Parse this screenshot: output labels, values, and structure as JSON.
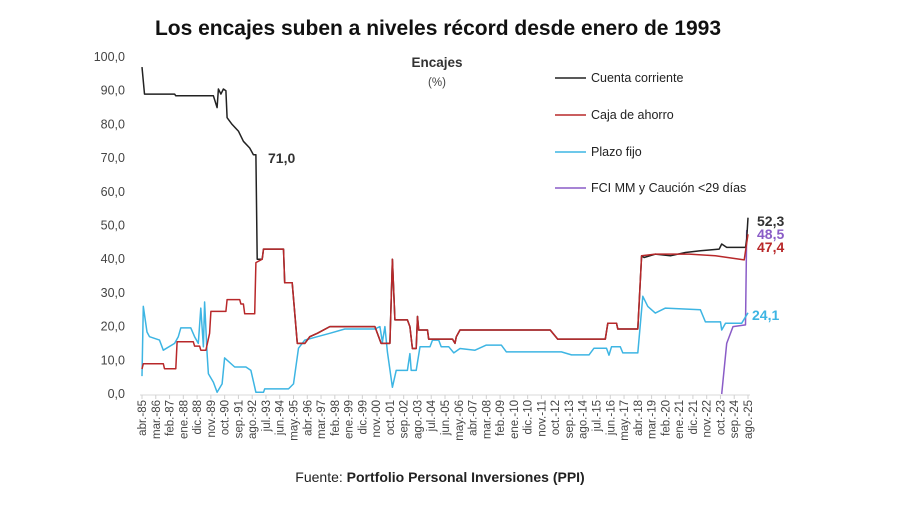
{
  "chart_data": {
    "type": "line",
    "title": "Los encajes suben a niveles récord desde enero de 1993",
    "chart_title": "Encajes",
    "unit": "(%)",
    "source_prefix": "Fuente: ",
    "source": "Portfolio Personal Inversiones (PPI)",
    "ylim": [
      0,
      100
    ],
    "y_ticks": [
      "0,0",
      "10,0",
      "20,0",
      "30,0",
      "40,0",
      "50,0",
      "60,0",
      "70,0",
      "80,0",
      "90,0",
      "100,0"
    ],
    "x_ticks": [
      "abr.-85",
      "mar.-86",
      "feb.-87",
      "ene.-88",
      "dic.-88",
      "nov.-89",
      "oct.-90",
      "sep.-91",
      "ago.-92",
      "jul.-93",
      "jun.-94",
      "may.-95",
      "abr.-96",
      "mar.-97",
      "feb.-98",
      "ene.-99",
      "dic.-99",
      "nov.-00",
      "oct.-01",
      "sep.-02",
      "ago.-03",
      "jul.-04",
      "jun.-05",
      "may.-06",
      "abr.-07",
      "mar.-08",
      "feb.-09",
      "ene.-10",
      "dic.-10",
      "nov.-11",
      "oct.-12",
      "sep.-13",
      "ago.-14",
      "jul.-15",
      "jun.-16",
      "may.-17",
      "abr.-18",
      "mar.-19",
      "feb.-20",
      "ene.-21",
      "dic.-21",
      "nov.-22",
      "oct.-23",
      "sep.-24",
      "ago.-25"
    ],
    "xlim": [
      "1985-04",
      "2025-08"
    ],
    "grid": false,
    "legend_position": "top-right",
    "annotations": [
      {
        "text": "71,0",
        "series": "Cuenta corriente",
        "date": "1992-09"
      },
      {
        "text": "52,3",
        "series": "Cuenta corriente",
        "date": "2025-08"
      },
      {
        "text": "48,5",
        "series": "FCI MM y Caución <29 días",
        "date": "2025-08"
      },
      {
        "text": "47,4",
        "series": "Caja de ahorro",
        "date": "2025-08"
      },
      {
        "text": "24,1",
        "series": "Plazo fijo",
        "date": "2025-08"
      }
    ],
    "series": [
      {
        "name": "Cuenta corriente",
        "color": "#222222",
        "points": [
          [
            "1985-04",
            97
          ],
          [
            "1985-06",
            89
          ],
          [
            "1987-06",
            89
          ],
          [
            "1987-07",
            88.5
          ],
          [
            "1990-01",
            88.5
          ],
          [
            "1990-04",
            85
          ],
          [
            "1990-05",
            90.5
          ],
          [
            "1990-07",
            89
          ],
          [
            "1990-09",
            90.5
          ],
          [
            "1990-11",
            90
          ],
          [
            "1990-12",
            82
          ],
          [
            "1991-04",
            80
          ],
          [
            "1991-09",
            78
          ],
          [
            "1992-01",
            75
          ],
          [
            "1992-06",
            73
          ],
          [
            "1992-09",
            71
          ],
          [
            "1992-11",
            71
          ],
          [
            "1992-12",
            40
          ],
          [
            "1993-04",
            40
          ],
          [
            "1993-05",
            43
          ],
          [
            "1994-09",
            43
          ],
          [
            "1994-10",
            33
          ],
          [
            "1995-04",
            33
          ],
          [
            "1995-08",
            15
          ],
          [
            "1996-02",
            15
          ],
          [
            "1996-06",
            17
          ],
          [
            "1996-12",
            18
          ],
          [
            "1997-10",
            20
          ],
          [
            "2000-10",
            20
          ],
          [
            "2001-03",
            15
          ],
          [
            "2001-10",
            15
          ],
          [
            "2001-12",
            40
          ],
          [
            "2002-02",
            22
          ],
          [
            "2002-12",
            22
          ],
          [
            "2003-02",
            20
          ],
          [
            "2003-04",
            13.5
          ],
          [
            "2003-07",
            13.5
          ],
          [
            "2003-08",
            23
          ],
          [
            "2003-09",
            19
          ],
          [
            "2004-04",
            19
          ],
          [
            "2004-05",
            16.3
          ],
          [
            "2005-12",
            16.3
          ],
          [
            "2006-02",
            15
          ],
          [
            "2006-03",
            17
          ],
          [
            "2006-06",
            19
          ],
          [
            "2012-06",
            19
          ],
          [
            "2012-12",
            16.3
          ],
          [
            "2016-02",
            16.3
          ],
          [
            "2016-04",
            21
          ],
          [
            "2016-11",
            21
          ],
          [
            "2016-12",
            19.3
          ],
          [
            "2018-04",
            19.3
          ],
          [
            "2018-07",
            41
          ],
          [
            "2018-09",
            40.5
          ],
          [
            "2019-06",
            41.5
          ],
          [
            "2020-06",
            41
          ],
          [
            "2021-06",
            42
          ],
          [
            "2022-06",
            42.5
          ],
          [
            "2023-09",
            43
          ],
          [
            "2023-11",
            44.5
          ],
          [
            "2024-03",
            43.5
          ],
          [
            "2025-06",
            43.5
          ],
          [
            "2025-07",
            46
          ],
          [
            "2025-08",
            52.3
          ]
        ]
      },
      {
        "name": "Caja de ahorro",
        "color": "#b8282a",
        "points": [
          [
            "1985-04",
            7.4
          ],
          [
            "1985-05",
            9
          ],
          [
            "1986-09",
            9
          ],
          [
            "1986-10",
            7.5
          ],
          [
            "1987-07",
            7.5
          ],
          [
            "1987-08",
            15.5
          ],
          [
            "1988-09",
            15.5
          ],
          [
            "1988-10",
            14.2
          ],
          [
            "1989-02",
            14.2
          ],
          [
            "1989-03",
            13
          ],
          [
            "1989-07",
            13
          ],
          [
            "1989-10",
            18
          ],
          [
            "1989-11",
            24.5
          ],
          [
            "1990-11",
            24.5
          ],
          [
            "1990-12",
            28
          ],
          [
            "1991-10",
            28
          ],
          [
            "1991-11",
            26.7
          ],
          [
            "1992-01",
            26.7
          ],
          [
            "1992-02",
            23.8
          ],
          [
            "1992-10",
            23.8
          ],
          [
            "1992-11",
            39
          ],
          [
            "1993-04",
            40
          ],
          [
            "1993-05",
            43
          ],
          [
            "1994-09",
            43
          ],
          [
            "1994-10",
            33
          ],
          [
            "1995-04",
            33
          ],
          [
            "1995-08",
            15
          ],
          [
            "1996-02",
            15
          ],
          [
            "1996-06",
            17
          ],
          [
            "1996-12",
            18
          ],
          [
            "1997-10",
            20
          ],
          [
            "2000-10",
            20
          ],
          [
            "2001-03",
            15
          ],
          [
            "2001-10",
            15
          ],
          [
            "2001-12",
            40
          ],
          [
            "2002-02",
            22
          ],
          [
            "2002-12",
            22
          ],
          [
            "2003-02",
            20
          ],
          [
            "2003-04",
            13.5
          ],
          [
            "2003-07",
            13.5
          ],
          [
            "2003-08",
            23
          ],
          [
            "2003-09",
            19
          ],
          [
            "2004-04",
            19
          ],
          [
            "2004-05",
            16.3
          ],
          [
            "2005-12",
            16.3
          ],
          [
            "2006-02",
            15
          ],
          [
            "2006-03",
            17
          ],
          [
            "2006-06",
            19
          ],
          [
            "2012-06",
            19
          ],
          [
            "2012-12",
            16.3
          ],
          [
            "2016-02",
            16.3
          ],
          [
            "2016-04",
            21
          ],
          [
            "2016-11",
            21
          ],
          [
            "2016-12",
            19.3
          ],
          [
            "2018-04",
            19.3
          ],
          [
            "2018-07",
            41
          ],
          [
            "2019-06",
            41.5
          ],
          [
            "2021-09",
            41.5
          ],
          [
            "2023-06",
            41
          ],
          [
            "2025-05",
            39.8
          ],
          [
            "2025-08",
            47.4
          ]
        ]
      },
      {
        "name": "Plazo fijo",
        "color": "#3db5e3",
        "points": [
          [
            "1985-04",
            5.3
          ],
          [
            "1985-05",
            26
          ],
          [
            "1985-08",
            18.4
          ],
          [
            "1985-10",
            17
          ],
          [
            "1986-06",
            16
          ],
          [
            "1986-09",
            13
          ],
          [
            "1987-06",
            15
          ],
          [
            "1987-09",
            17
          ],
          [
            "1987-11",
            19.6
          ],
          [
            "1988-07",
            19.6
          ],
          [
            "1988-10",
            17
          ],
          [
            "1989-01",
            15
          ],
          [
            "1989-03",
            25.5
          ],
          [
            "1989-05",
            14
          ],
          [
            "1989-06",
            27.3
          ],
          [
            "1989-08",
            12
          ],
          [
            "1989-09",
            6
          ],
          [
            "1990-01",
            3.5
          ],
          [
            "1990-04",
            0.5
          ],
          [
            "1990-08",
            3
          ],
          [
            "1990-10",
            10.7
          ],
          [
            "1991-06",
            8
          ],
          [
            "1992-03",
            8
          ],
          [
            "1992-07",
            7
          ],
          [
            "1992-11",
            0.5
          ],
          [
            "1993-05",
            0.5
          ],
          [
            "1993-06",
            1.5
          ],
          [
            "1995-01",
            1.5
          ],
          [
            "1995-05",
            3
          ],
          [
            "1995-09",
            13.6
          ],
          [
            "1996-02",
            16
          ],
          [
            "1996-12",
            17
          ],
          [
            "1997-10",
            18
          ],
          [
            "1998-10",
            19.3
          ],
          [
            "2000-10",
            19.3
          ],
          [
            "2001-02",
            20
          ],
          [
            "2001-04",
            15.4
          ],
          [
            "2001-06",
            20
          ],
          [
            "2001-08",
            12.5
          ],
          [
            "2001-12",
            2
          ],
          [
            "2002-03",
            7
          ],
          [
            "2002-12",
            7
          ],
          [
            "2003-02",
            12
          ],
          [
            "2003-03",
            7
          ],
          [
            "2003-07",
            7
          ],
          [
            "2003-10",
            14
          ],
          [
            "2004-06",
            14
          ],
          [
            "2004-08",
            16
          ],
          [
            "2005-01",
            16
          ],
          [
            "2005-03",
            14
          ],
          [
            "2005-09",
            14
          ],
          [
            "2006-01",
            12.2
          ],
          [
            "2006-06",
            13.5
          ],
          [
            "2007-06",
            13
          ],
          [
            "2008-03",
            14.5
          ],
          [
            "2009-03",
            14.5
          ],
          [
            "2009-07",
            12.5
          ],
          [
            "2013-03",
            12.5
          ],
          [
            "2013-11",
            11.6
          ],
          [
            "2015-01",
            11.6
          ],
          [
            "2015-05",
            13.6
          ],
          [
            "2016-03",
            13.6
          ],
          [
            "2016-05",
            11.5
          ],
          [
            "2016-07",
            14
          ],
          [
            "2017-02",
            14
          ],
          [
            "2017-04",
            12.2
          ],
          [
            "2018-04",
            12.2
          ],
          [
            "2018-08",
            29
          ],
          [
            "2018-12",
            26
          ],
          [
            "2019-06",
            24
          ],
          [
            "2020-02",
            25.5
          ],
          [
            "2022-06",
            25
          ],
          [
            "2022-10",
            21.4
          ],
          [
            "2023-10",
            21.4
          ],
          [
            "2023-11",
            19
          ],
          [
            "2024-02",
            21
          ],
          [
            "2025-03",
            21
          ],
          [
            "2025-08",
            24.1
          ]
        ]
      },
      {
        "name": "FCI MM y Caución <29 días",
        "color": "#8a5cc7",
        "points": [
          [
            "2023-11",
            0
          ],
          [
            "2024-03",
            15
          ],
          [
            "2024-08",
            20
          ],
          [
            "2025-06",
            20.5
          ],
          [
            "2025-07",
            48.5
          ],
          [
            "2025-08",
            48.5
          ]
        ]
      }
    ]
  }
}
